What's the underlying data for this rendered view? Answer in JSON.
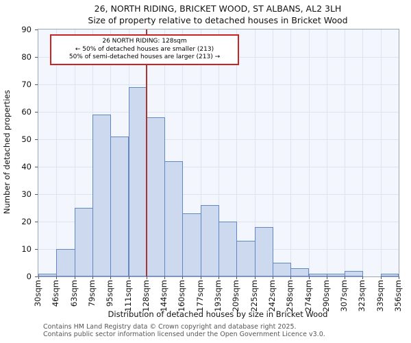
{
  "chart_data": {
    "type": "bar",
    "title": "26, NORTH RIDING, BRICKET WOOD, ST ALBANS, AL2 3LH",
    "subtitle": "Size of property relative to detached houses in Bricket Wood",
    "xlabel": "Distribution of detached houses by size in Bricket Wood",
    "ylabel": "Number of detached properties",
    "bin_labels": [
      "30sqm",
      "46sqm",
      "63sqm",
      "79sqm",
      "95sqm",
      "111sqm",
      "128sqm",
      "144sqm",
      "160sqm",
      "177sqm",
      "193sqm",
      "209sqm",
      "225sqm",
      "242sqm",
      "258sqm",
      "274sqm",
      "290sqm",
      "307sqm",
      "323sqm",
      "339sqm",
      "356sqm"
    ],
    "values": [
      1,
      10,
      25,
      59,
      51,
      69,
      58,
      42,
      23,
      26,
      20,
      13,
      18,
      5,
      3,
      1,
      1,
      2,
      0,
      1
    ],
    "ylim": [
      0,
      90
    ],
    "ytick_step": 10,
    "grid": true,
    "bar_fill": "#ccd9ee",
    "bar_stroke": "#6186c4",
    "marker": {
      "label": "128sqm",
      "color": "#aa3333"
    },
    "annotation": {
      "line1": "26 NORTH RIDING: 128sqm",
      "line2": "← 50% of detached houses are smaller (213)",
      "line3": "50% of semi-detached houses are larger (213) →",
      "border_color": "#cc2222"
    }
  },
  "footer": {
    "line1": "Contains HM Land Registry data © Crown copyright and database right 2025.",
    "line2": "Contains public sector information licensed under the Open Government Licence v3.0."
  }
}
